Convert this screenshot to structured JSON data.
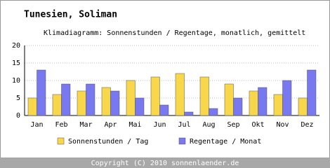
{
  "chart_data": {
    "type": "bar",
    "title": "Tunesien, Soliman",
    "subtitle": "Klimadiagramm: Sonnenstunden / Regentage, monatlich, gemittelt",
    "categories": [
      "Jan",
      "Feb",
      "Mar",
      "Apr",
      "Mai",
      "Jun",
      "Jul",
      "Aug",
      "Sep",
      "Okt",
      "Nov",
      "Dez"
    ],
    "series": [
      {
        "name": "Sonnenstunden / Tag",
        "color": "#f8d84a",
        "values": [
          5,
          6,
          7,
          8,
          10,
          11,
          12,
          11,
          9,
          7,
          6,
          5
        ]
      },
      {
        "name": "Regentage / Monat",
        "color": "#7878f0",
        "values": [
          13,
          9,
          9,
          7,
          5,
          3,
          1,
          2,
          5,
          8,
          10,
          13
        ]
      }
    ],
    "ylim": [
      0,
      20
    ],
    "yticks": [
      0,
      5,
      10,
      15,
      20
    ],
    "grid": true,
    "footer": "Copyright (C) 2010 sonnenlaender.de"
  }
}
